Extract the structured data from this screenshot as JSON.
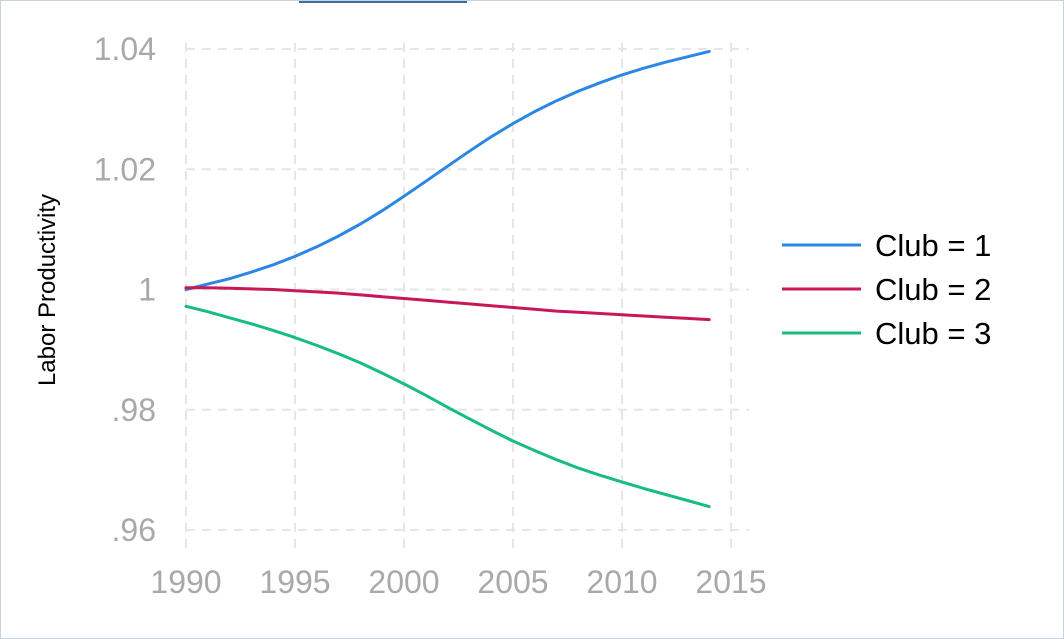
{
  "chart_data": {
    "type": "line",
    "title": "",
    "xlabel": "",
    "ylabel": "Labor Productivity",
    "xlim": [
      1990,
      2015
    ],
    "ylim": [
      0.96,
      1.04
    ],
    "grid": true,
    "legend_position": "right",
    "x_ticks": [
      1990,
      1995,
      2000,
      2005,
      2010,
      2015
    ],
    "x_tick_labels": [
      "1990",
      "1995",
      "2000",
      "2005",
      "2010",
      "2015"
    ],
    "y_ticks": [
      0.96,
      0.98,
      1.0,
      1.02,
      1.04
    ],
    "y_tick_labels": [
      ".96",
      ".98",
      "1",
      "1.02",
      "1.04"
    ],
    "x": [
      1990,
      1991,
      1992,
      1993,
      1994,
      1995,
      1996,
      1997,
      1998,
      1999,
      2000,
      2001,
      2002,
      2003,
      2004,
      2005,
      2006,
      2007,
      2008,
      2009,
      2010,
      2011,
      2012,
      2013,
      2014
    ],
    "series": [
      {
        "name": "Club = 1",
        "color": "#2b87e3",
        "values": [
          1.0,
          1.0009,
          1.0018,
          1.0029,
          1.0041,
          1.0055,
          1.0071,
          1.0089,
          1.0109,
          1.0131,
          1.0155,
          1.018,
          1.0205,
          1.023,
          1.0254,
          1.0276,
          1.0296,
          1.0314,
          1.033,
          1.0344,
          1.0357,
          1.0368,
          1.0378,
          1.0387,
          1.0396
        ]
      },
      {
        "name": "Club = 2",
        "color": "#c8175a",
        "values": [
          1.0003,
          1.0003,
          1.0002,
          1.0001,
          1.0,
          0.9998,
          0.9996,
          0.9994,
          0.9991,
          0.9988,
          0.9985,
          0.9982,
          0.9979,
          0.9976,
          0.9973,
          0.997,
          0.9967,
          0.9964,
          0.9962,
          0.996,
          0.9958,
          0.9956,
          0.9954,
          0.9952,
          0.995
        ]
      },
      {
        "name": "Club = 3",
        "color": "#17bd7e",
        "values": [
          0.9972,
          0.9963,
          0.9953,
          0.9943,
          0.9932,
          0.992,
          0.9907,
          0.9893,
          0.9878,
          0.9861,
          0.9843,
          0.9824,
          0.9804,
          0.9785,
          0.9766,
          0.9748,
          0.9732,
          0.9717,
          0.9703,
          0.9691,
          0.968,
          0.9669,
          0.9659,
          0.9649,
          0.9639
        ]
      }
    ]
  }
}
